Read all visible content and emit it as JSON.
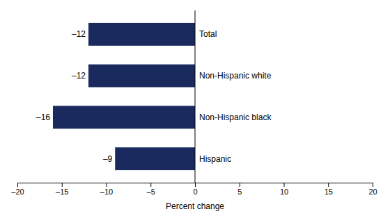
{
  "chart_data": {
    "type": "bar",
    "orientation": "horizontal",
    "categories": [
      "Total",
      "Non-Hispanic white",
      "Non-Hispanic black",
      "Hispanic"
    ],
    "values": [
      -12,
      -12,
      -16,
      -9
    ],
    "value_labels": [
      "–12",
      "–12",
      "–16",
      "–9"
    ],
    "data_labels": true,
    "color": "#1a2a5e",
    "xlabel": "Percent change",
    "xlim": [
      -20,
      20
    ],
    "xticks": [
      {
        "value": -20,
        "label": "–20"
      },
      {
        "value": -15,
        "label": "–15"
      },
      {
        "value": -10,
        "label": "–10"
      },
      {
        "value": -5,
        "label": "–5"
      },
      0,
      5,
      10,
      15,
      20
    ],
    "grid": false
  }
}
